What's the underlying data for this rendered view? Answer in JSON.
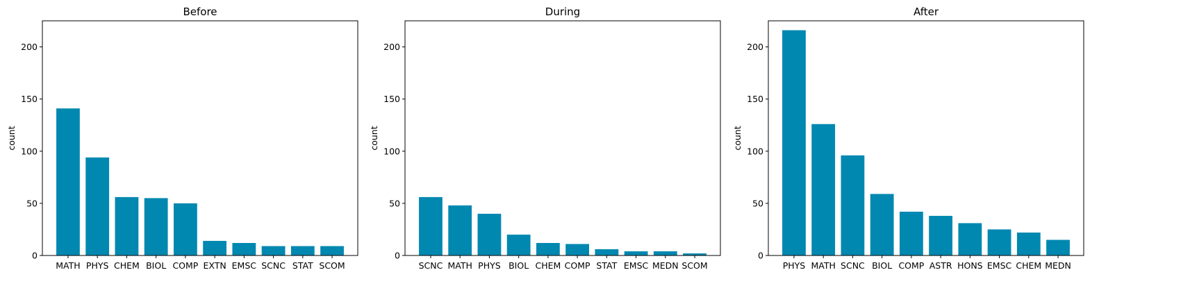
{
  "colors": {
    "bar": "#0088b0",
    "axis": "#000000",
    "background": "#ffffff"
  },
  "chart_data": [
    {
      "type": "bar",
      "title": "Before",
      "xlabel": "",
      "ylabel": "count",
      "ylim": [
        0,
        225
      ],
      "yticks": [
        0,
        50,
        100,
        150,
        200
      ],
      "grid": false,
      "categories": [
        "MATH",
        "PHYS",
        "CHEM",
        "BIOL",
        "COMP",
        "EXTN",
        "EMSC",
        "SCNC",
        "STAT",
        "SCOM"
      ],
      "values": [
        141,
        94,
        56,
        55,
        50,
        14,
        12,
        9,
        9,
        9
      ]
    },
    {
      "type": "bar",
      "title": "During",
      "xlabel": "",
      "ylabel": "count",
      "ylim": [
        0,
        225
      ],
      "yticks": [
        0,
        50,
        100,
        150,
        200
      ],
      "grid": false,
      "categories": [
        "SCNC",
        "MATH",
        "PHYS",
        "BIOL",
        "CHEM",
        "COMP",
        "STAT",
        "EMSC",
        "MEDN",
        "SCOM"
      ],
      "values": [
        56,
        48,
        40,
        20,
        12,
        11,
        6,
        4,
        4,
        2
      ]
    },
    {
      "type": "bar",
      "title": "After",
      "xlabel": "",
      "ylabel": "count",
      "ylim": [
        0,
        225
      ],
      "yticks": [
        0,
        50,
        100,
        150,
        200
      ],
      "grid": false,
      "categories": [
        "PHYS",
        "MATH",
        "SCNC",
        "BIOL",
        "COMP",
        "ASTR",
        "HONS",
        "EMSC",
        "CHEM",
        "MEDN"
      ],
      "values": [
        216,
        126,
        96,
        59,
        42,
        38,
        31,
        25,
        22,
        15
      ]
    }
  ]
}
